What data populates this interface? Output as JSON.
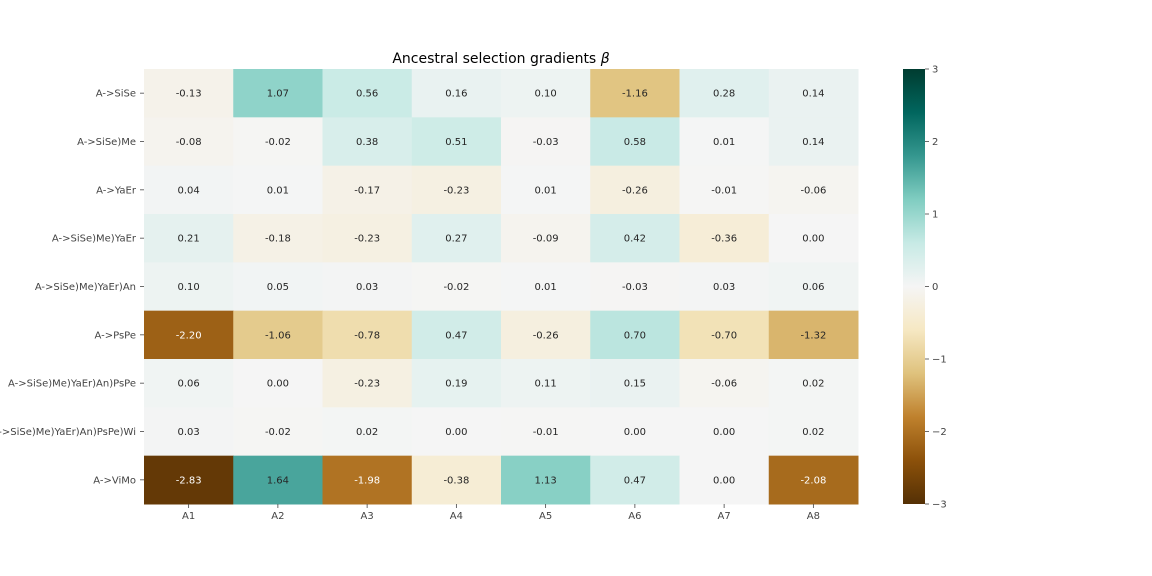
{
  "chart_data": {
    "type": "heatmap",
    "title": "Ancestral selection gradients",
    "title_symbol": "β",
    "xlabel": "",
    "ylabel": "",
    "columns": [
      "A1",
      "A2",
      "A3",
      "A4",
      "A5",
      "A6",
      "A7",
      "A8"
    ],
    "rows": [
      "A->SiSe",
      "A->SiSe)Me",
      "A->YaEr",
      "A->SiSe)Me)YaEr",
      "A->SiSe)Me)YaEr)An",
      "A->PsPe",
      "A->SiSe)Me)YaEr)An)PsPe",
      "A->SiSe)Me)YaEr)An)PsPe)Wi",
      "A->ViMo"
    ],
    "values": [
      [
        -0.13,
        1.07,
        0.56,
        0.16,
        0.1,
        -1.16,
        0.28,
        0.14
      ],
      [
        -0.08,
        -0.02,
        0.38,
        0.51,
        -0.03,
        0.58,
        0.01,
        0.14
      ],
      [
        0.04,
        0.01,
        -0.17,
        -0.23,
        0.01,
        -0.26,
        -0.01,
        -0.06
      ],
      [
        0.21,
        -0.18,
        -0.23,
        0.27,
        -0.09,
        0.42,
        -0.36,
        -0.0
      ],
      [
        0.1,
        0.05,
        0.03,
        -0.02,
        0.01,
        -0.03,
        0.03,
        0.06
      ],
      [
        -2.2,
        -1.06,
        -0.78,
        0.47,
        -0.26,
        0.7,
        -0.7,
        -1.32
      ],
      [
        0.06,
        0.0,
        -0.23,
        0.19,
        0.11,
        0.15,
        -0.06,
        0.02
      ],
      [
        0.03,
        -0.02,
        0.02,
        0.0,
        -0.01,
        -0.0,
        0.0,
        0.02
      ],
      [
        -2.83,
        1.64,
        -1.98,
        -0.38,
        1.13,
        0.47,
        -0.0,
        -2.08
      ]
    ],
    "value_format_decimals": 2,
    "colorbar": {
      "min": -3,
      "max": 3,
      "ticks": [
        3,
        2,
        1,
        0,
        -1,
        -2,
        -3
      ],
      "tick_labels": [
        "3",
        "2",
        "1",
        "0",
        "−1",
        "−2",
        "−3"
      ]
    },
    "colormap": "BrBG",
    "colormap_stops": [
      "#543005",
      "#8c510a",
      "#bf812d",
      "#dfc27d",
      "#f6e8c3",
      "#f5f5f5",
      "#c7eae5",
      "#80cdc1",
      "#35978f",
      "#01665e",
      "#003c30"
    ],
    "text_colors": {
      "dark": "#262626",
      "light": "#ffffff"
    }
  }
}
